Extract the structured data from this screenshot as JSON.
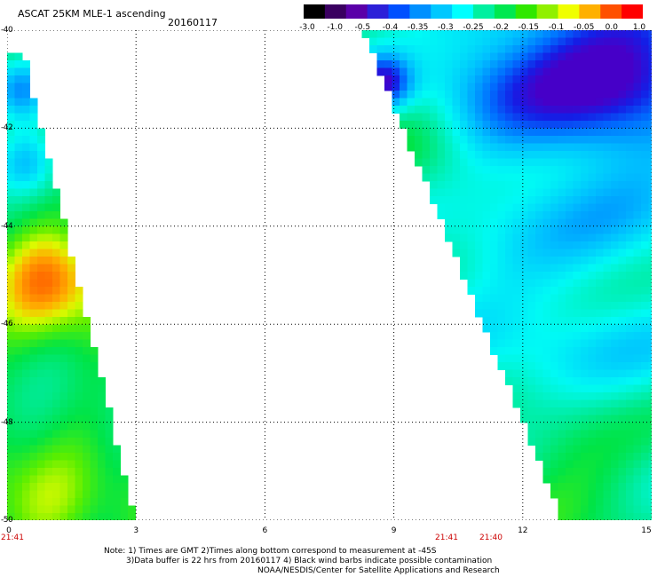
{
  "header": {
    "title": "ASCAT 25KM MLE-1 ascending",
    "date": "20160117"
  },
  "colorbar": {
    "labels": [
      "-3.0",
      "-1.0",
      "-0.5",
      "-0.4",
      "-0.35",
      "-0.3",
      "-0.25",
      "-0.2",
      "-0.15",
      "-0.1",
      "-0.05",
      "0.0",
      "1.0"
    ],
    "colors": [
      "#000000",
      "#3a0060",
      "#5a00a8",
      "#2c20d8",
      "#0050ff",
      "#0090ff",
      "#00c8ff",
      "#00ffff",
      "#00f0a0",
      "#00e850",
      "#30e800",
      "#90f000",
      "#f0ff00",
      "#ffb000",
      "#ff5000",
      "#ff0000"
    ]
  },
  "axes": {
    "x_ticks": [
      "0",
      "3",
      "6",
      "9",
      "12",
      "15"
    ],
    "y_ticks": [
      "-40",
      "-42",
      "-44",
      "-46",
      "-48",
      "-50"
    ]
  },
  "times": {
    "left": "21:41",
    "mid1": "21:41",
    "mid2": "21:40"
  },
  "notes": {
    "line1": "Note: 1) Times are GMT 2)Times along bottom correspond to measurement at -45S",
    "line2": "3)Data buffer is 22 hrs from 20160117 4) Black wind barbs indicate possible contamination",
    "line3": "NOAA/NESDIS/Center for Satellite Applications and Research"
  }
}
